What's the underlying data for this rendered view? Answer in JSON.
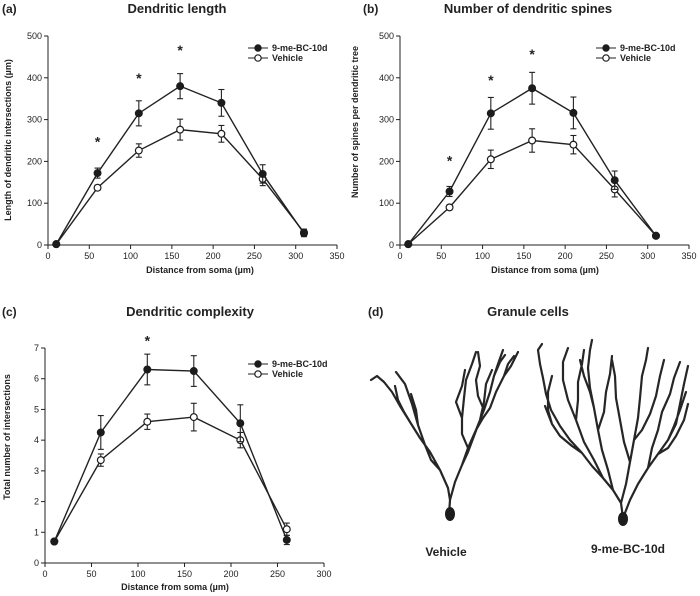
{
  "chart_data": [
    {
      "id": "a",
      "panel_label": "(a)",
      "type": "line",
      "title": "Dendritic length",
      "xlabel": "Distance from soma (µm)",
      "ylabel": "Length of dendritic intersections (µm)",
      "xlim": [
        0,
        350
      ],
      "ylim": [
        0,
        500
      ],
      "xticks": [
        "0",
        "50",
        "100",
        "150",
        "200",
        "250",
        "300",
        "350"
      ],
      "yticks": [
        "0",
        "100",
        "200",
        "300",
        "400",
        "500"
      ],
      "x": [
        10,
        60,
        110,
        160,
        210,
        260,
        310
      ],
      "series": [
        {
          "name": "9-me-BC-10d",
          "marker": "filled",
          "values": [
            2,
            172,
            315,
            380,
            340,
            170,
            28
          ],
          "errors": [
            0,
            12,
            30,
            30,
            32,
            22,
            8
          ]
        },
        {
          "name": "Vehicle",
          "marker": "open",
          "values": [
            2,
            137,
            226,
            276,
            266,
            158,
            30
          ],
          "errors": [
            0,
            6,
            16,
            25,
            20,
            16,
            8
          ]
        }
      ],
      "significance": [
        {
          "x": 60,
          "y": 248,
          "label": "*"
        },
        {
          "x": 110,
          "y": 400,
          "label": "*"
        },
        {
          "x": 160,
          "y": 466,
          "label": "*"
        }
      ],
      "legend": "top-right"
    },
    {
      "id": "b",
      "panel_label": "(b)",
      "type": "line",
      "title": "Number of dendritic spines",
      "xlabel": "Distance from soma (µm)",
      "ylabel": "Number of spines per dendritic tree",
      "xlim": [
        0,
        350
      ],
      "ylim": [
        0,
        500
      ],
      "xticks": [
        "0",
        "50",
        "100",
        "150",
        "200",
        "250",
        "300",
        "350"
      ],
      "yticks": [
        "0",
        "100",
        "200",
        "300",
        "400",
        "500"
      ],
      "x": [
        10,
        60,
        110,
        160,
        210,
        260,
        310
      ],
      "series": [
        {
          "name": "9-me-BC-10d",
          "marker": "filled",
          "values": [
            2,
            128,
            315,
            375,
            316,
            155,
            22
          ],
          "errors": [
            0,
            12,
            38,
            38,
            38,
            22,
            5
          ]
        },
        {
          "name": "Vehicle",
          "marker": "open",
          "values": [
            2,
            90,
            205,
            250,
            240,
            133,
            22
          ],
          "errors": [
            0,
            6,
            22,
            28,
            22,
            18,
            5
          ]
        }
      ],
      "significance": [
        {
          "x": 60,
          "y": 202,
          "label": "*"
        },
        {
          "x": 110,
          "y": 395,
          "label": "*"
        },
        {
          "x": 160,
          "y": 457,
          "label": "*"
        }
      ],
      "legend": "top-right"
    },
    {
      "id": "c",
      "panel_label": "(c)",
      "type": "line",
      "title": "Dendritic complexity",
      "xlabel": "Distance from soma (µm)",
      "ylabel": "Total number of intersections",
      "xlim": [
        0,
        300
      ],
      "ylim": [
        0,
        7
      ],
      "xticks": [
        "0",
        "50",
        "100",
        "150",
        "200",
        "250",
        "300"
      ],
      "yticks": [
        "0",
        "1",
        "2",
        "3",
        "4",
        "5",
        "6",
        "7"
      ],
      "x": [
        10,
        60,
        110,
        160,
        210,
        260
      ],
      "series": [
        {
          "name": "9-me-BC-10d",
          "marker": "filled",
          "values": [
            0.7,
            4.25,
            6.3,
            6.25,
            4.55,
            0.75
          ],
          "errors": [
            0.05,
            0.55,
            0.5,
            0.5,
            0.6,
            0.15
          ]
        },
        {
          "name": "Vehicle",
          "marker": "open",
          "values": [
            0.7,
            3.35,
            4.6,
            4.75,
            4.0,
            1.1
          ],
          "errors": [
            0.05,
            0.2,
            0.25,
            0.45,
            0.25,
            0.2
          ]
        }
      ],
      "significance": [
        {
          "x": 110,
          "y": 7.25,
          "label": "*"
        }
      ],
      "legend": "top-right"
    }
  ],
  "panel_d": {
    "panel_label": "(d)",
    "title": "Granule cells",
    "cells": [
      {
        "name": "vehicle-neuron",
        "label": "Vehicle"
      },
      {
        "name": "treated-neuron",
        "label": "9-me-BC-10d"
      }
    ]
  }
}
